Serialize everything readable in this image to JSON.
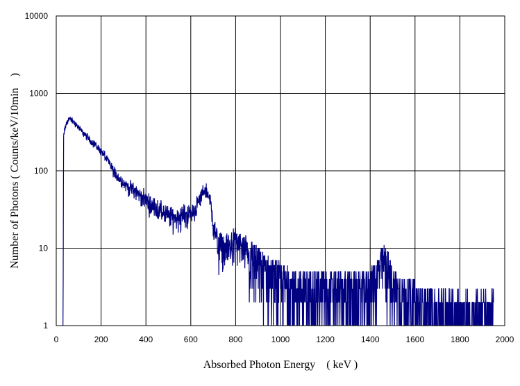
{
  "chart_data": {
    "type": "line",
    "title": "",
    "xlabel": "Absorbed Photon Energy　( keV )",
    "ylabel": "Number  of Photons ( Counts/keV/10min　)",
    "xlim": [
      0,
      2000
    ],
    "ylim": [
      1,
      10000
    ],
    "y_scale": "log",
    "grid": true,
    "legend": "none",
    "x_ticks": [
      "0",
      "200",
      "400",
      "600",
      "800",
      "1000",
      "1200",
      "1400",
      "1600",
      "1800",
      "2000"
    ],
    "y_ticks": [
      "1",
      "10",
      "100",
      "1000",
      "10000"
    ],
    "line_color": "#000080",
    "series": [
      {
        "x": [
          30,
          33,
          36,
          40,
          45,
          50,
          55,
          60,
          65,
          70,
          80,
          90,
          100,
          120,
          140,
          160,
          180,
          200,
          220,
          240,
          260,
          280,
          300,
          320,
          340,
          360,
          380,
          400,
          420,
          440,
          460,
          480,
          500,
          520,
          540,
          560,
          580,
          600,
          620,
          640,
          650,
          660,
          670,
          680,
          690,
          700,
          710,
          720,
          740,
          760,
          780,
          800,
          820,
          840,
          860,
          880,
          900,
          920,
          940,
          960,
          980,
          1000,
          1050,
          1100,
          1150,
          1200,
          1250,
          1300,
          1350,
          1400,
          1440,
          1460,
          1480,
          1500,
          1550,
          1600,
          1700,
          1800,
          1900,
          1950
        ],
        "values": [
          1,
          270,
          320,
          360,
          400,
          440,
          460,
          470,
          460,
          450,
          420,
          390,
          360,
          310,
          270,
          235,
          205,
          180,
          150,
          120,
          95,
          80,
          70,
          63,
          57,
          52,
          47,
          42,
          37,
          34,
          31,
          29,
          26,
          25,
          25,
          26,
          27,
          28,
          32,
          42,
          50,
          56,
          55,
          48,
          35,
          22,
          15,
          11,
          10,
          10,
          11,
          12,
          11,
          9,
          8,
          7,
          6,
          5,
          5,
          4,
          4,
          3.5,
          3,
          3,
          3,
          2.8,
          2.8,
          2.8,
          2.8,
          3.2,
          5,
          6.5,
          5,
          3.5,
          2.5,
          2,
          1.7,
          1.6,
          1.5,
          1.5
        ]
      }
    ]
  }
}
